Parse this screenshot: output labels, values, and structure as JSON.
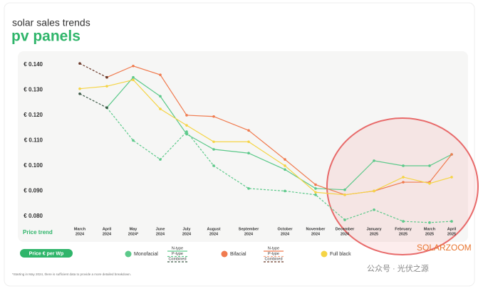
{
  "chart_data": {
    "type": "line",
    "title": "pv panels",
    "subtitle": "solar sales trends",
    "x_axis_label": "Price trend",
    "y_axis_label": "Price € per Wp",
    "footnote": "*Starting in May 2024, there is sufficient data to provide a more detailed breakdown.",
    "watermark": "SOLARZOOM",
    "source": "公众号 · 光伏之源",
    "categories": [
      [
        "March",
        "2024"
      ],
      [
        "April",
        "2024"
      ],
      [
        "May",
        "2024*"
      ],
      [
        "June",
        "2024"
      ],
      [
        "July",
        "2024"
      ],
      [
        "August",
        "2024"
      ],
      [
        "September",
        "2024"
      ],
      [
        "October",
        "2024"
      ],
      [
        "November",
        "2024"
      ],
      [
        "December",
        "2024"
      ],
      [
        "January",
        "2025"
      ],
      [
        "February",
        "2025"
      ],
      [
        "March",
        "2025"
      ],
      [
        "April",
        "2025"
      ]
    ],
    "ylim": [
      0.0765,
      0.1425
    ],
    "yticks": [
      {
        "value": 0.08,
        "label": "€ 0.080"
      },
      {
        "value": 0.09,
        "label": "€ 0.090"
      },
      {
        "value": 0.1,
        "label": "€ 0.100"
      },
      {
        "value": 0.11,
        "label": "€ 0.110"
      },
      {
        "value": 0.12,
        "label": "€ 0.120"
      },
      {
        "value": 0.13,
        "label": "€ 0.130"
      },
      {
        "value": 0.14,
        "label": "€ 0.140"
      }
    ],
    "grid": false,
    "series": [
      {
        "group": "Monofacial",
        "name": "N-type",
        "color": "#5cc98a",
        "dash": "solid",
        "values": [
          null,
          0.123,
          0.135,
          0.1275,
          0.1125,
          0.1065,
          0.105,
          0.0985,
          0.091,
          0.0905,
          0.102,
          0.1,
          0.1,
          0.1045
        ]
      },
      {
        "group": "Monofacial",
        "name": "P-type",
        "color": "#5cc98a",
        "dash": "dashed",
        "values": [
          null,
          0.123,
          0.11,
          0.1025,
          0.1135,
          0.1,
          0.091,
          0.09,
          0.0885,
          0.0786,
          0.0826,
          0.078,
          0.0775,
          0.078
        ]
      },
      {
        "group": "Monofacial",
        "name": "Combined",
        "color": "#3d5a48",
        "dash": "dashed",
        "values": [
          0.1285,
          0.123,
          null,
          null,
          null,
          null,
          null,
          null,
          null,
          null,
          null,
          null,
          null,
          null
        ]
      },
      {
        "group": "Bifacial",
        "name": "N-type",
        "color": "#f07b4f",
        "dash": "solid",
        "values": [
          null,
          0.135,
          0.1395,
          0.136,
          0.12,
          0.1195,
          0.114,
          0.1025,
          0.0925,
          0.0885,
          0.09,
          0.0935,
          0.0935,
          0.1045
        ]
      },
      {
        "group": "Bifacial",
        "name": "P-type",
        "color": "#f7a584",
        "dash": "dashed",
        "values": [
          null,
          null,
          null,
          null,
          null,
          null,
          null,
          null,
          null,
          null,
          null,
          null,
          null,
          null
        ]
      },
      {
        "group": "Bifacial",
        "name": "Combined",
        "color": "#6b3a2a",
        "dash": "dashed",
        "values": [
          0.1405,
          0.135,
          null,
          null,
          null,
          null,
          null,
          null,
          null,
          null,
          null,
          null,
          null,
          null
        ]
      },
      {
        "name": "Full black",
        "color": "#f5d445",
        "dash": "solid",
        "values": [
          0.1305,
          0.1315,
          0.134,
          0.1225,
          0.116,
          0.1095,
          0.1095,
          0.1,
          0.0895,
          0.0885,
          0.09,
          0.0955,
          0.093,
          0.0955
        ]
      }
    ]
  }
}
